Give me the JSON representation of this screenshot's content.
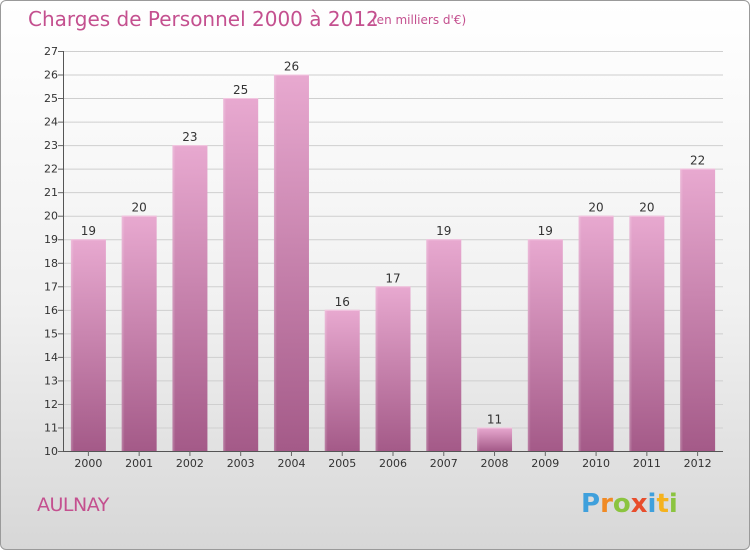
{
  "header": {
    "title": "Charges de Personnel 2000 à 2012",
    "subtitle": "(en milliers d'€)"
  },
  "footer": {
    "town": "AULNAY",
    "brand": "Proxiti"
  },
  "colors": {
    "title": "#c4508f",
    "bar_top": "#e8a9d0",
    "bar_bottom": "#a45a88"
  },
  "chart_data": {
    "type": "bar",
    "title": "Charges de Personnel 2000 à 2012",
    "subtitle": "(en milliers d'€)",
    "xlabel": "",
    "ylabel": "",
    "categories": [
      "2000",
      "2001",
      "2002",
      "2003",
      "2004",
      "2005",
      "2006",
      "2007",
      "2008",
      "2009",
      "2010",
      "2011",
      "2012"
    ],
    "values": [
      19,
      20,
      23,
      25,
      26,
      16,
      17,
      19,
      11,
      19,
      20,
      20,
      22
    ],
    "ylim": [
      10,
      27
    ],
    "yticks": [
      10,
      11,
      12,
      13,
      14,
      15,
      16,
      17,
      18,
      19,
      20,
      21,
      22,
      23,
      24,
      25,
      26,
      27
    ],
    "grid": true,
    "legend": "none"
  }
}
